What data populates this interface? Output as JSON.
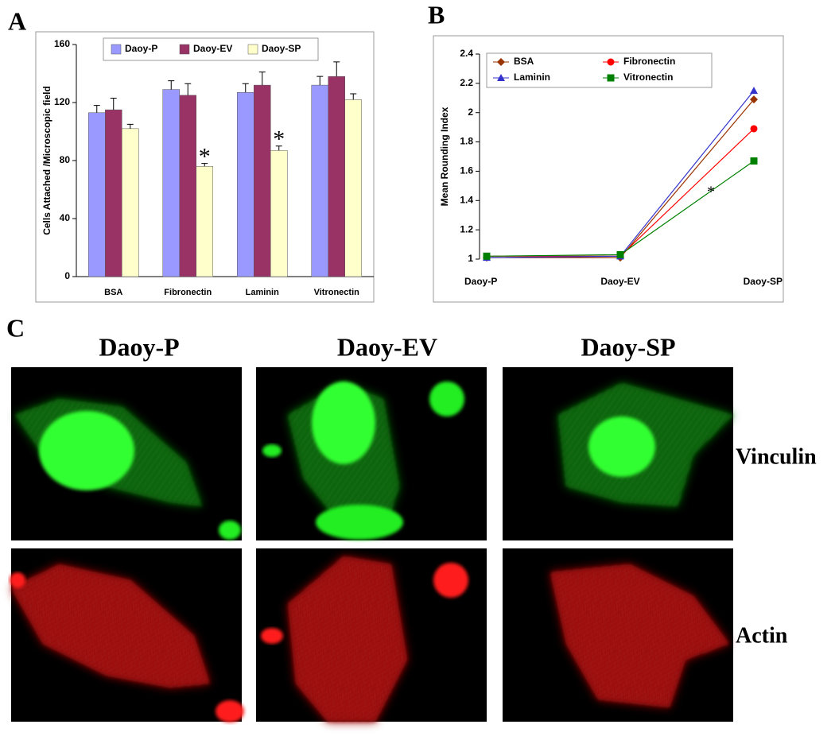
{
  "panels": [
    "A",
    "B",
    "C"
  ],
  "chart_data": [
    {
      "type": "bar",
      "y_label": "Cells Attached /Microscopic field",
      "categories": [
        "BSA",
        "Fibronectin",
        "Laminin",
        "Vitronectin"
      ],
      "series": [
        {
          "name": "Daoy-P",
          "color": "#9999ff",
          "values": [
            113,
            129,
            127,
            132
          ],
          "errors": [
            5,
            6,
            6,
            6
          ]
        },
        {
          "name": "Daoy-EV",
          "color": "#993366",
          "values": [
            115,
            125,
            132,
            138
          ],
          "errors": [
            8,
            8,
            9,
            10
          ]
        },
        {
          "name": "Daoy-SP",
          "color": "#ffffcc",
          "values": [
            102,
            76,
            87,
            122
          ],
          "errors": [
            3,
            2,
            3,
            4
          ]
        }
      ],
      "ylim": [
        0,
        160
      ],
      "yticks": [
        0,
        40,
        80,
        120,
        160
      ],
      "grid": false,
      "legend": "top",
      "annotations": [
        {
          "text": "*",
          "category": "Fibronectin",
          "series": "Daoy-SP"
        },
        {
          "text": "*",
          "category": "Laminin",
          "series": "Daoy-SP"
        }
      ]
    },
    {
      "type": "line",
      "y_label": "Mean Rounding Index",
      "categories": [
        "Daoy-P",
        "Daoy-EV",
        "Daoy-SP"
      ],
      "series": [
        {
          "name": "BSA",
          "color": "#993300",
          "marker": "diamond",
          "values": [
            1.01,
            1.01,
            2.09
          ]
        },
        {
          "name": "Fibronectin",
          "color": "#ff0000",
          "marker": "circle",
          "values": [
            1.02,
            1.02,
            1.89
          ]
        },
        {
          "name": "Laminin",
          "color": "#3333cc",
          "marker": "triangle",
          "values": [
            1.01,
            1.02,
            2.15
          ]
        },
        {
          "name": "Vitronectin",
          "color": "#008000",
          "marker": "square",
          "values": [
            1.02,
            1.03,
            1.67
          ]
        }
      ],
      "ylim": [
        1,
        2.4
      ],
      "yticks": [
        1,
        1.2,
        1.4,
        1.6,
        1.8,
        2,
        2.2,
        2.4
      ],
      "grid": false,
      "legend": "top-left",
      "annotations": [
        {
          "text": "*",
          "series": "Vitronectin"
        }
      ]
    }
  ],
  "images": {
    "columns": [
      "Daoy-P",
      "Daoy-EV",
      "Daoy-SP"
    ],
    "rows": [
      "Vinculin",
      "Actin"
    ]
  }
}
